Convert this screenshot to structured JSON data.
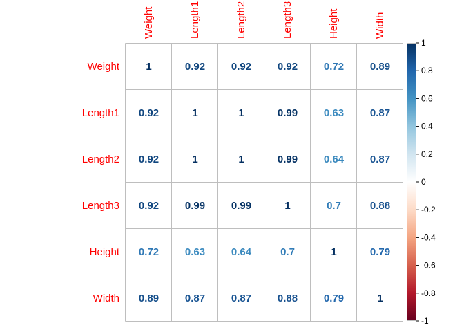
{
  "chart_data": {
    "type": "heatmap",
    "variables": [
      "Weight",
      "Length1",
      "Length2",
      "Length3",
      "Height",
      "Width"
    ],
    "matrix": [
      [
        "1",
        "0.92",
        "0.92",
        "0.92",
        "0.72",
        "0.89"
      ],
      [
        "0.92",
        "1",
        "1",
        "0.99",
        "0.63",
        "0.87"
      ],
      [
        "0.92",
        "1",
        "1",
        "0.99",
        "0.64",
        "0.87"
      ],
      [
        "0.92",
        "0.99",
        "0.99",
        "1",
        "0.7",
        "0.88"
      ],
      [
        "0.72",
        "0.63",
        "0.64",
        "0.7",
        "1",
        "0.79"
      ],
      [
        "0.89",
        "0.87",
        "0.87",
        "0.88",
        "0.79",
        "1"
      ]
    ],
    "colorbar": {
      "range": [
        -1,
        1
      ],
      "ticks": [
        "1",
        "0.8",
        "0.6",
        "0.4",
        "0.2",
        "0",
        "-0.2",
        "-0.4",
        "-0.6",
        "-0.8",
        "-1"
      ],
      "colors": [
        "#67001f",
        "#b2182b",
        "#d6604d",
        "#f4a582",
        "#fddbc7",
        "#ffffff",
        "#d1e5f0",
        "#92c5de",
        "#4393c3",
        "#2166ac",
        "#053061"
      ]
    },
    "label_color": "#ff0000",
    "grid_color": "#bebebe"
  }
}
